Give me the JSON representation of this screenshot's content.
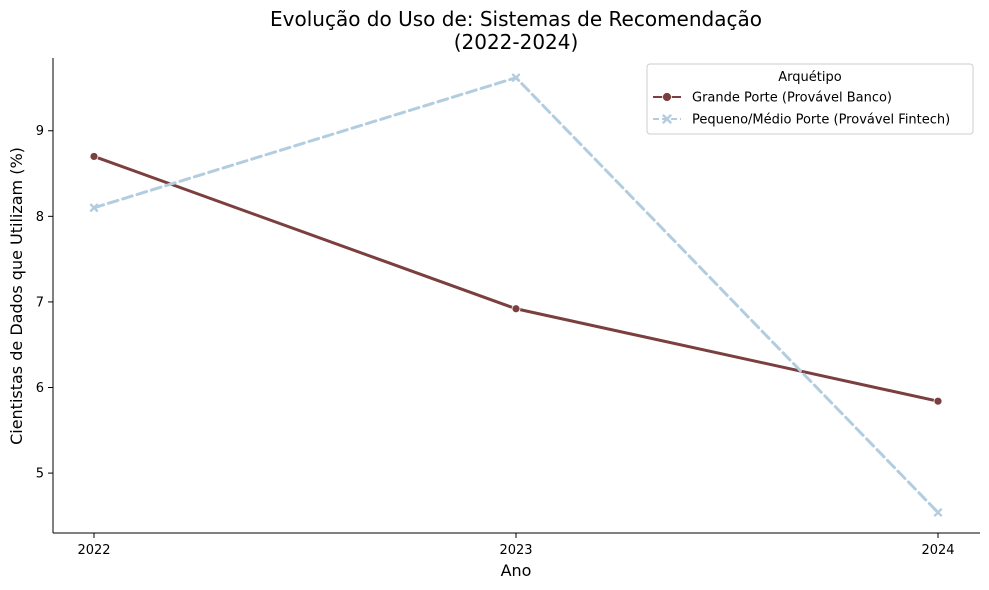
{
  "chart_data": {
    "type": "line",
    "title_line1": "Evolução do Uso de: Sistemas de Recomendação",
    "title_line2": "(2022-2024)",
    "xlabel": "Ano",
    "ylabel": "Cientistas de Dados que Utilizam (%)",
    "categories": [
      "2022",
      "2023",
      "2024"
    ],
    "x": [
      2022,
      2023,
      2024
    ],
    "ylim": [
      4.3,
      9.85
    ],
    "yticks": [
      5,
      6,
      7,
      8,
      9
    ],
    "grid": false,
    "legend": {
      "title": "Arquétipo",
      "placement": "top-right"
    },
    "series": [
      {
        "name": "Grande Porte (Provável Banco)",
        "values": [
          8.7,
          6.92,
          5.84
        ],
        "color": "#7b3f3f",
        "marker": "circle",
        "dash": "solid"
      },
      {
        "name": "Pequeno/Médio Porte (Provável Fintech)",
        "values": [
          8.1,
          9.62,
          4.54
        ],
        "color": "#b3cde0",
        "marker": "x",
        "dash": "dashed"
      }
    ]
  }
}
